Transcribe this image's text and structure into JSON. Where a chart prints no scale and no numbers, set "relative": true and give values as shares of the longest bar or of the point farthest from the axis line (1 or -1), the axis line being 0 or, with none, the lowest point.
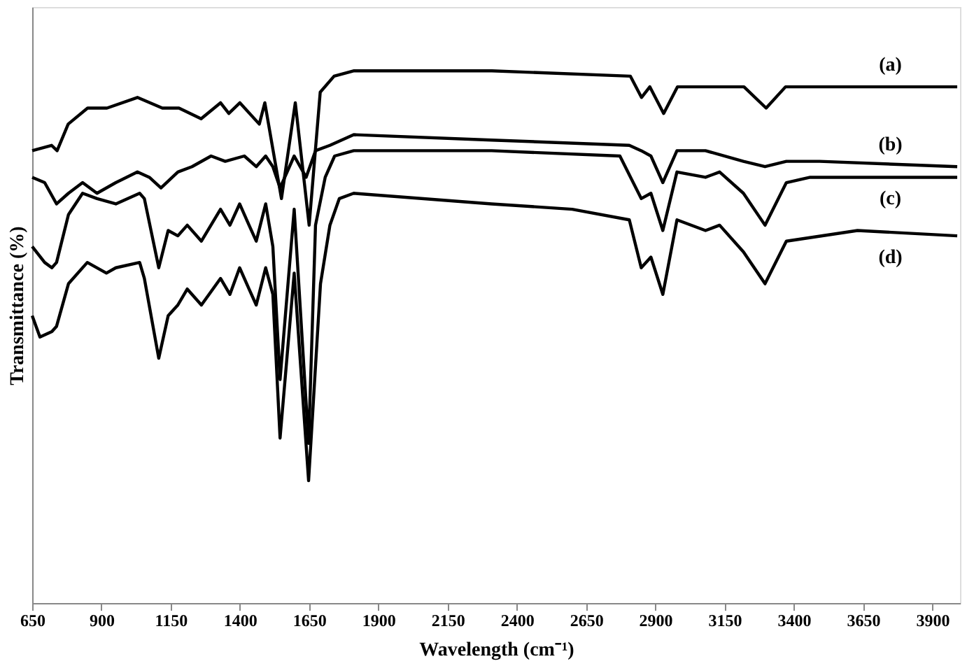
{
  "chart_data": {
    "type": "line",
    "relative": true,
    "xlabel": "Wavelength (cm⁻¹)",
    "ylabel": "Transmittance (%)",
    "xlim": [
      650,
      4000
    ],
    "xticks": [
      650,
      900,
      1150,
      1400,
      1650,
      1900,
      2150,
      2400,
      2650,
      2900,
      3150,
      3400,
      3650,
      3900
    ],
    "grid": false,
    "legend": false,
    "marker": "none",
    "line_style": "solid",
    "series": [
      {
        "name": "(a)",
        "color": "#000000",
        "x": [
          650,
          720,
          740,
          780,
          850,
          920,
          1030,
          1120,
          1180,
          1260,
          1330,
          1360,
          1400,
          1470,
          1490,
          1550,
          1600,
          1650,
          1690,
          1740,
          1810,
          2310,
          2810,
          2850,
          2880,
          2930,
          2980,
          3080,
          3220,
          3300,
          3370,
          3460,
          3990
        ],
        "values": [
          0.85,
          0.86,
          0.85,
          0.9,
          0.93,
          0.93,
          0.95,
          0.93,
          0.93,
          0.91,
          0.94,
          0.92,
          0.94,
          0.9,
          0.94,
          0.76,
          0.94,
          0.71,
          0.96,
          0.99,
          1.0,
          1.0,
          0.99,
          0.95,
          0.97,
          0.92,
          0.97,
          0.97,
          0.97,
          0.93,
          0.97,
          0.97,
          0.97
        ]
      },
      {
        "name": "(b)",
        "color": "#000000",
        "x": [
          650,
          695,
          738,
          781,
          832,
          884,
          952,
          1030,
          1073,
          1115,
          1176,
          1227,
          1296,
          1347,
          1416,
          1459,
          1493,
          1519,
          1545,
          1596,
          1639,
          1673,
          1725,
          1811,
          2309,
          2806,
          2849,
          2884,
          2927,
          2978,
          3081,
          3218,
          3296,
          3373,
          3493,
          3990
        ],
        "values": [
          0.8,
          0.79,
          0.75,
          0.77,
          0.79,
          0.77,
          0.79,
          0.81,
          0.8,
          0.78,
          0.81,
          0.82,
          0.84,
          0.83,
          0.84,
          0.82,
          0.84,
          0.82,
          0.78,
          0.84,
          0.8,
          0.85,
          0.86,
          0.88,
          0.87,
          0.86,
          0.85,
          0.84,
          0.79,
          0.85,
          0.85,
          0.83,
          0.82,
          0.83,
          0.83,
          0.82
        ]
      },
      {
        "name": "(c)",
        "color": "#000000",
        "x": [
          650,
          695,
          721,
          738,
          781,
          832,
          884,
          952,
          1038,
          1055,
          1107,
          1141,
          1176,
          1210,
          1261,
          1330,
          1364,
          1399,
          1433,
          1459,
          1493,
          1519,
          1545,
          1596,
          1648,
          1673,
          1708,
          1742,
          1811,
          2309,
          2772,
          2849,
          2884,
          2927,
          2978,
          3081,
          3132,
          3218,
          3296,
          3373,
          3459,
          3990
        ],
        "values": [
          0.67,
          0.64,
          0.63,
          0.64,
          0.73,
          0.77,
          0.76,
          0.75,
          0.77,
          0.76,
          0.63,
          0.7,
          0.69,
          0.71,
          0.68,
          0.74,
          0.71,
          0.75,
          0.71,
          0.68,
          0.75,
          0.67,
          0.42,
          0.74,
          0.3,
          0.71,
          0.8,
          0.84,
          0.85,
          0.85,
          0.84,
          0.76,
          0.77,
          0.7,
          0.81,
          0.8,
          0.81,
          0.77,
          0.71,
          0.79,
          0.8,
          0.8
        ]
      },
      {
        "name": "(d)",
        "color": "#000000",
        "x": [
          650,
          678,
          721,
          738,
          781,
          849,
          918,
          952,
          1038,
          1055,
          1107,
          1141,
          1176,
          1210,
          1261,
          1330,
          1364,
          1399,
          1433,
          1459,
          1493,
          1519,
          1545,
          1596,
          1648,
          1691,
          1725,
          1759,
          1811,
          2309,
          2600,
          2806,
          2849,
          2884,
          2927,
          2978,
          3081,
          3132,
          3218,
          3296,
          3373,
          3630,
          3990
        ],
        "values": [
          0.54,
          0.5,
          0.51,
          0.52,
          0.6,
          0.64,
          0.62,
          0.63,
          0.64,
          0.61,
          0.46,
          0.54,
          0.56,
          0.59,
          0.56,
          0.61,
          0.58,
          0.63,
          0.59,
          0.56,
          0.63,
          0.58,
          0.31,
          0.62,
          0.23,
          0.6,
          0.71,
          0.76,
          0.77,
          0.75,
          0.74,
          0.72,
          0.63,
          0.65,
          0.58,
          0.72,
          0.7,
          0.71,
          0.66,
          0.6,
          0.68,
          0.7,
          0.69
        ]
      }
    ]
  }
}
